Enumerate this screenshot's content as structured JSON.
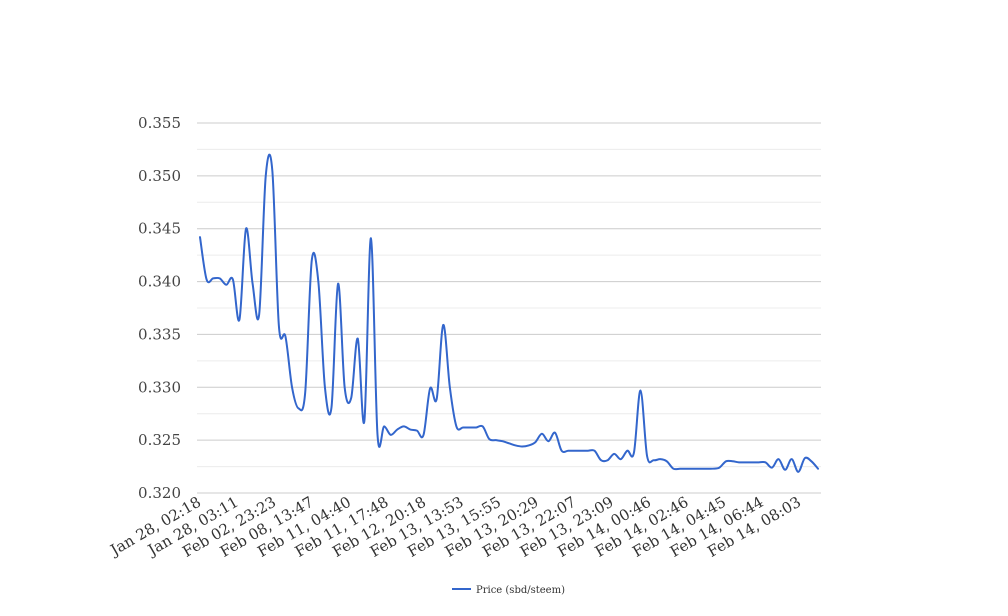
{
  "chart_data": {
    "type": "line",
    "title": "",
    "xlabel": "",
    "ylabel": "",
    "ylim": [
      0.32,
      0.355
    ],
    "y_ticks": [
      "0.320",
      "0.325",
      "0.330",
      "0.335",
      "0.340",
      "0.345",
      "0.350",
      "0.355"
    ],
    "x_tick_labels": [
      "Jan 28, 02:18",
      "Jan 28, 03:11",
      "Feb 02, 23:23",
      "Feb 08, 13:47",
      "Feb 11, 04:40",
      "Feb 11, 17:48",
      "Feb 12, 20:18",
      "Feb 13, 13:53",
      "Feb 13, 15:55",
      "Feb 13, 20:29",
      "Feb 13, 22:07",
      "Feb 13, 23:09",
      "Feb 14, 00:46",
      "Feb 14, 02:46",
      "Feb 14, 04:45",
      "Feb 14, 06:44",
      "Feb 14, 08:03"
    ],
    "grid": true,
    "smooth": true,
    "legend": {
      "position": "bottom-center"
    },
    "series": [
      {
        "name": "Price (sbd/steem)",
        "color": "#3366cc",
        "values": [
          0.3442,
          0.3402,
          0.3403,
          0.3403,
          0.3397,
          0.3402,
          0.3364,
          0.345,
          0.3398,
          0.3369,
          0.35,
          0.3505,
          0.3358,
          0.3348,
          0.33,
          0.328,
          0.3295,
          0.342,
          0.34,
          0.33,
          0.3281,
          0.3398,
          0.33,
          0.329,
          0.3346,
          0.3268,
          0.3441,
          0.3255,
          0.3263,
          0.3255,
          0.326,
          0.3263,
          0.326,
          0.3259,
          0.3255,
          0.3299,
          0.3289,
          0.3359,
          0.33,
          0.3263,
          0.3262,
          0.3262,
          0.3262,
          0.3263,
          0.3251,
          0.325,
          0.3249,
          0.3247,
          0.3245,
          0.3244,
          0.3245,
          0.3248,
          0.3256,
          0.3249,
          0.3257,
          0.324,
          0.324,
          0.324,
          0.324,
          0.324,
          0.324,
          0.3231,
          0.3231,
          0.3237,
          0.3232,
          0.324,
          0.3238,
          0.3297,
          0.3235,
          0.3231,
          0.3232,
          0.323,
          0.3223,
          0.3223,
          0.3223,
          0.3223,
          0.3223,
          0.3223,
          0.3223,
          0.3224,
          0.323,
          0.323,
          0.3229,
          0.3229,
          0.3229,
          0.3229,
          0.3229,
          0.3224,
          0.3232,
          0.3222,
          0.3232,
          0.322,
          0.3233,
          0.323,
          0.3223
        ]
      }
    ]
  }
}
